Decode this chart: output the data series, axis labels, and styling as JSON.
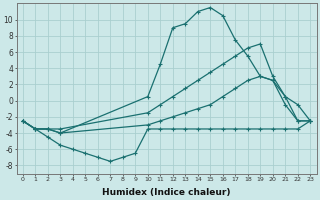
{
  "xlabel": "Humidex (Indice chaleur)",
  "bg_color": "#cce8e8",
  "grid_color": "#aacfcf",
  "line_color": "#1a7070",
  "xlim": [
    -0.5,
    23.5
  ],
  "ylim": [
    -9,
    12
  ],
  "yticks": [
    -8,
    -6,
    -4,
    -2,
    0,
    2,
    4,
    6,
    8,
    10
  ],
  "xticks": [
    0,
    1,
    2,
    3,
    4,
    5,
    6,
    7,
    8,
    9,
    10,
    11,
    12,
    13,
    14,
    15,
    16,
    17,
    18,
    19,
    20,
    21,
    22,
    23
  ],
  "series": [
    {
      "x": [
        0,
        1,
        2,
        3,
        10,
        11,
        12,
        13,
        14,
        15,
        16,
        17,
        18,
        19,
        20,
        21,
        22,
        23
      ],
      "y": [
        -2.5,
        -3.5,
        -3.5,
        -4.0,
        0.5,
        4.5,
        9.0,
        9.5,
        11.0,
        11.5,
        10.5,
        7.5,
        5.5,
        3.0,
        2.5,
        0.5,
        -2.5,
        -2.5
      ]
    },
    {
      "x": [
        0,
        1,
        2,
        3,
        10,
        11,
        12,
        13,
        14,
        15,
        16,
        17,
        18,
        19,
        20,
        21,
        22,
        23
      ],
      "y": [
        -2.5,
        -3.5,
        -3.5,
        -3.5,
        -1.5,
        -0.5,
        0.5,
        1.5,
        2.5,
        3.5,
        4.5,
        5.5,
        6.5,
        7.0,
        3.0,
        0.5,
        -0.5,
        -2.5
      ]
    },
    {
      "x": [
        0,
        1,
        2,
        3,
        10,
        11,
        12,
        13,
        14,
        15,
        16,
        17,
        18,
        19,
        20,
        21,
        22,
        23
      ],
      "y": [
        -2.5,
        -3.5,
        -3.5,
        -4.0,
        -3.0,
        -2.5,
        -2.0,
        -1.5,
        -1.0,
        -0.5,
        0.5,
        1.5,
        2.5,
        3.0,
        2.5,
        -0.5,
        -2.5,
        -2.5
      ]
    },
    {
      "x": [
        0,
        1,
        2,
        3,
        4,
        5,
        6,
        7,
        8,
        9,
        10,
        11,
        12,
        13,
        14,
        15,
        16,
        17,
        18,
        19,
        20,
        21,
        22,
        23
      ],
      "y": [
        -2.5,
        -3.5,
        -4.5,
        -5.5,
        -6.0,
        -6.5,
        -7.0,
        -7.5,
        -7.0,
        -6.5,
        -3.5,
        -3.5,
        -3.5,
        -3.5,
        -3.5,
        -3.5,
        -3.5,
        -3.5,
        -3.5,
        -3.5,
        -3.5,
        -3.5,
        -3.5,
        -2.5
      ]
    }
  ]
}
